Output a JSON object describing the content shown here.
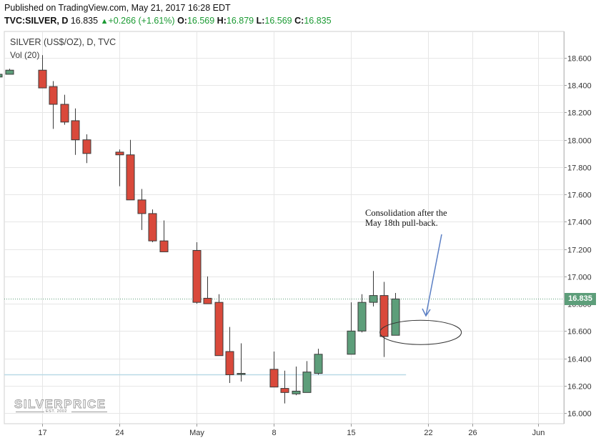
{
  "header": {
    "published": "Published on TradingView.com, May 21, 2017 16:28 EDT",
    "symbol": "TVC:SILVER, D",
    "last": "16.835",
    "change": "+0.266 (+1.61%)",
    "open_label": "O:",
    "open": "16.569",
    "high_label": "H:",
    "high": "16.879",
    "low_label": "L:",
    "low": "16.569",
    "close_label": "C:",
    "close": "16.835"
  },
  "pane": {
    "title": "SILVER (US$/OZ), D, TVC",
    "volume_label": "Vol (20)"
  },
  "annotation": {
    "line1": "Consolidation after the",
    "line2": "May 18th pull-back."
  },
  "logo": {
    "name": "SILVERPRICE",
    "est": "EST. 2002"
  },
  "colors": {
    "up": "#5d9e7a",
    "down": "#d9493b",
    "candle_border": "#3a3a3a",
    "grid": "#e6e6e6",
    "annotation": "#5b7fc4",
    "reference_line": "#b9d9e6"
  },
  "chart_data": {
    "type": "candlestick",
    "title": "SILVER (US$/OZ), D, TVC",
    "y_axis": {
      "position": "right",
      "range": [
        15.94,
        18.73
      ],
      "ticks": [
        "18.600",
        "18.400",
        "18.200",
        "18.000",
        "17.800",
        "17.600",
        "17.400",
        "17.200",
        "17.000",
        "16.800",
        "16.600",
        "16.400",
        "16.200",
        "16.000"
      ]
    },
    "x_axis": {
      "ticks": [
        {
          "label": "17",
          "date": "2017-04-17"
        },
        {
          "label": "24",
          "date": "2017-04-24"
        },
        {
          "label": "May",
          "date": "2017-05-01"
        },
        {
          "label": "8",
          "date": "2017-05-08"
        },
        {
          "label": "15",
          "date": "2017-05-15"
        },
        {
          "label": "22",
          "date": "2017-05-22"
        },
        {
          "label": "26",
          "date": "2017-05-26"
        },
        {
          "label": "Jun",
          "date": "2017-06-01"
        }
      ]
    },
    "last_price": 16.835,
    "grid": true,
    "candles": [
      {
        "date": "2017-04-13",
        "open": 18.46,
        "high": 18.54,
        "low": 18.42,
        "close": 18.48
      },
      {
        "date": "2017-04-14",
        "open": 18.48,
        "high": 18.52,
        "low": 18.48,
        "close": 18.51
      },
      {
        "date": "2017-04-17",
        "open": 18.51,
        "high": 18.62,
        "low": 18.38,
        "close": 18.38
      },
      {
        "date": "2017-04-18",
        "open": 18.39,
        "high": 18.43,
        "low": 18.08,
        "close": 18.26
      },
      {
        "date": "2017-04-19",
        "open": 18.26,
        "high": 18.33,
        "low": 18.11,
        "close": 18.13
      },
      {
        "date": "2017-04-20",
        "open": 18.14,
        "high": 18.23,
        "low": 17.89,
        "close": 18.0
      },
      {
        "date": "2017-04-21",
        "open": 18.0,
        "high": 18.04,
        "low": 17.83,
        "close": 17.9
      },
      {
        "date": "2017-04-24",
        "open": 17.91,
        "high": 17.93,
        "low": 17.66,
        "close": 17.89
      },
      {
        "date": "2017-04-25",
        "open": 17.89,
        "high": 18.0,
        "low": 17.56,
        "close": 17.56
      },
      {
        "date": "2017-04-26",
        "open": 17.56,
        "high": 17.64,
        "low": 17.34,
        "close": 17.46
      },
      {
        "date": "2017-04-27",
        "open": 17.46,
        "high": 17.49,
        "low": 17.25,
        "close": 17.26
      },
      {
        "date": "2017-04-28",
        "open": 17.26,
        "high": 17.41,
        "low": 17.18,
        "close": 17.18
      },
      {
        "date": "2017-05-01",
        "open": 17.19,
        "high": 17.25,
        "low": 16.8,
        "close": 16.81
      },
      {
        "date": "2017-05-02",
        "open": 16.84,
        "high": 17.0,
        "low": 16.8,
        "close": 16.8
      },
      {
        "date": "2017-05-03",
        "open": 16.81,
        "high": 16.87,
        "low": 16.42,
        "close": 16.42
      },
      {
        "date": "2017-05-04",
        "open": 16.45,
        "high": 16.63,
        "low": 16.22,
        "close": 16.28
      },
      {
        "date": "2017-05-05",
        "open": 16.29,
        "high": 16.51,
        "low": 16.23,
        "close": 16.29
      },
      {
        "date": "2017-05-08",
        "open": 16.32,
        "high": 16.45,
        "low": 16.19,
        "close": 16.19
      },
      {
        "date": "2017-05-09",
        "open": 16.18,
        "high": 16.31,
        "low": 16.07,
        "close": 16.15
      },
      {
        "date": "2017-05-10",
        "open": 16.14,
        "high": 16.34,
        "low": 16.13,
        "close": 16.16
      },
      {
        "date": "2017-05-11",
        "open": 16.15,
        "high": 16.38,
        "low": 16.15,
        "close": 16.3
      },
      {
        "date": "2017-05-12",
        "open": 16.29,
        "high": 16.47,
        "low": 16.28,
        "close": 16.43
      },
      {
        "date": "2017-05-15",
        "open": 16.43,
        "high": 16.81,
        "low": 16.43,
        "close": 16.6
      },
      {
        "date": "2017-05-16",
        "open": 16.6,
        "high": 16.87,
        "low": 16.59,
        "close": 16.81
      },
      {
        "date": "2017-05-17",
        "open": 16.81,
        "high": 17.04,
        "low": 16.78,
        "close": 16.86
      },
      {
        "date": "2017-05-18",
        "open": 16.86,
        "high": 16.96,
        "low": 16.41,
        "close": 16.56
      },
      {
        "date": "2017-05-19",
        "open": 16.569,
        "high": 16.879,
        "low": 16.569,
        "close": 16.835
      }
    ],
    "annotations": [
      {
        "text": "Consolidation after the May 18th pull-back.",
        "shape": "ellipse",
        "arrow": true
      }
    ]
  }
}
